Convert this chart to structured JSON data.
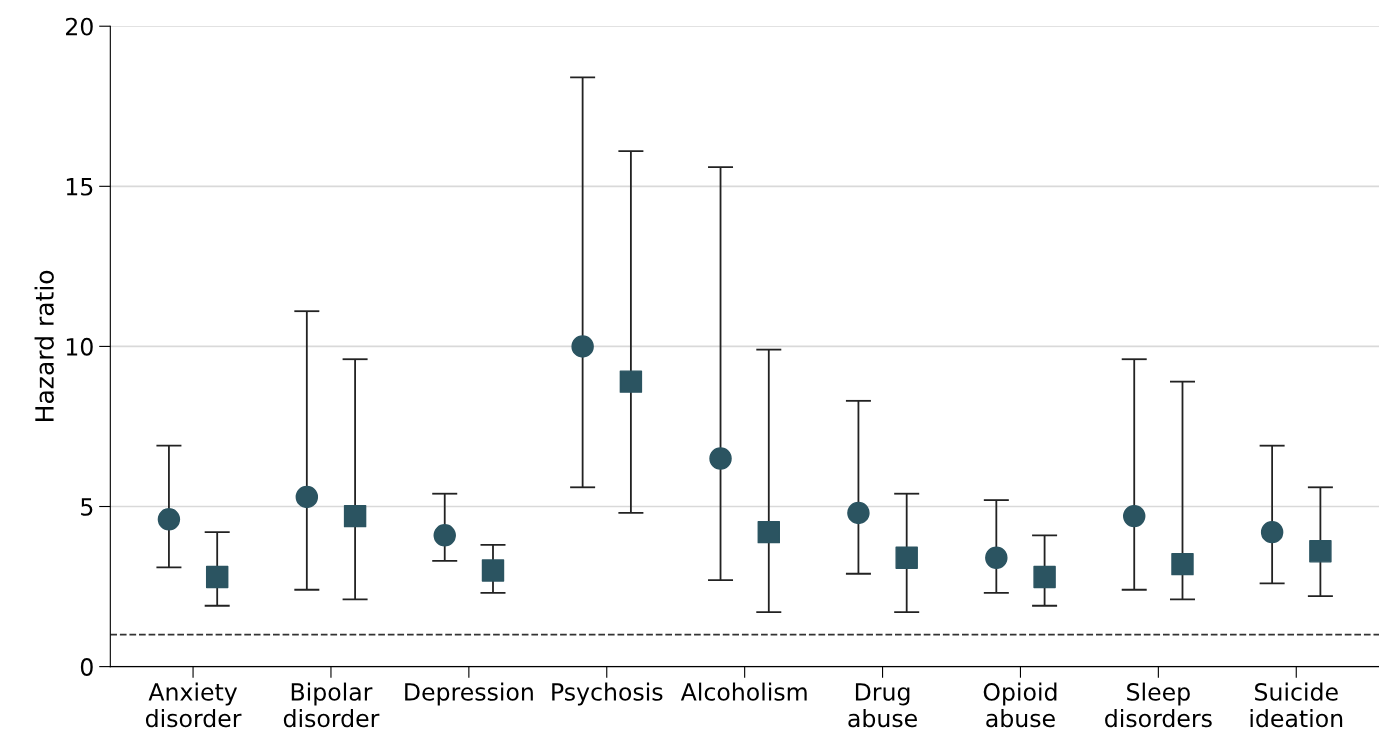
{
  "chart_data": {
    "type": "scatter",
    "ylabel": "Hazard ratio",
    "categories": [
      "Anxiety\ndisorder",
      "Bipolar\ndisorder",
      "Depression",
      "Psychosis",
      "Alcoholism",
      "Drug\nabuse",
      "Opioid\nabuse",
      "Sleep\ndisorders",
      "Suicide\nideation"
    ],
    "series": [
      {
        "color": "#2b5461",
        "marker": "circle",
        "values": [
          4.6,
          5.3,
          4.1,
          10.0,
          6.5,
          4.8,
          3.4,
          4.7,
          4.2
        ],
        "errors": [
          [
            3.1,
            6.9
          ],
          [
            2.4,
            11.1
          ],
          [
            3.3,
            5.4
          ],
          [
            5.6,
            18.4
          ],
          [
            2.7,
            15.6
          ],
          [
            2.9,
            8.3
          ],
          [
            2.3,
            5.2
          ],
          [
            2.4,
            9.6
          ],
          [
            2.6,
            6.9
          ]
        ]
      },
      {
        "color": "#2b5461",
        "marker": "square",
        "values": [
          2.8,
          4.7,
          3.0,
          8.9,
          4.2,
          3.4,
          2.8,
          3.2,
          3.6
        ],
        "errors": [
          [
            1.9,
            4.2
          ],
          [
            2.1,
            9.6
          ],
          [
            2.3,
            3.8
          ],
          [
            4.8,
            16.1
          ],
          [
            1.7,
            9.9
          ],
          [
            1.7,
            5.4
          ],
          [
            1.9,
            4.1
          ],
          [
            2.1,
            8.9
          ],
          [
            2.2,
            5.6
          ]
        ]
      }
    ],
    "ylim": [
      0,
      20
    ],
    "yticks": [
      0,
      5,
      10,
      15,
      20
    ],
    "grid": "y",
    "ref_lines": [
      {
        "axis": "y",
        "value": 1,
        "color": "#333333",
        "line_style": "dashed"
      }
    ]
  }
}
